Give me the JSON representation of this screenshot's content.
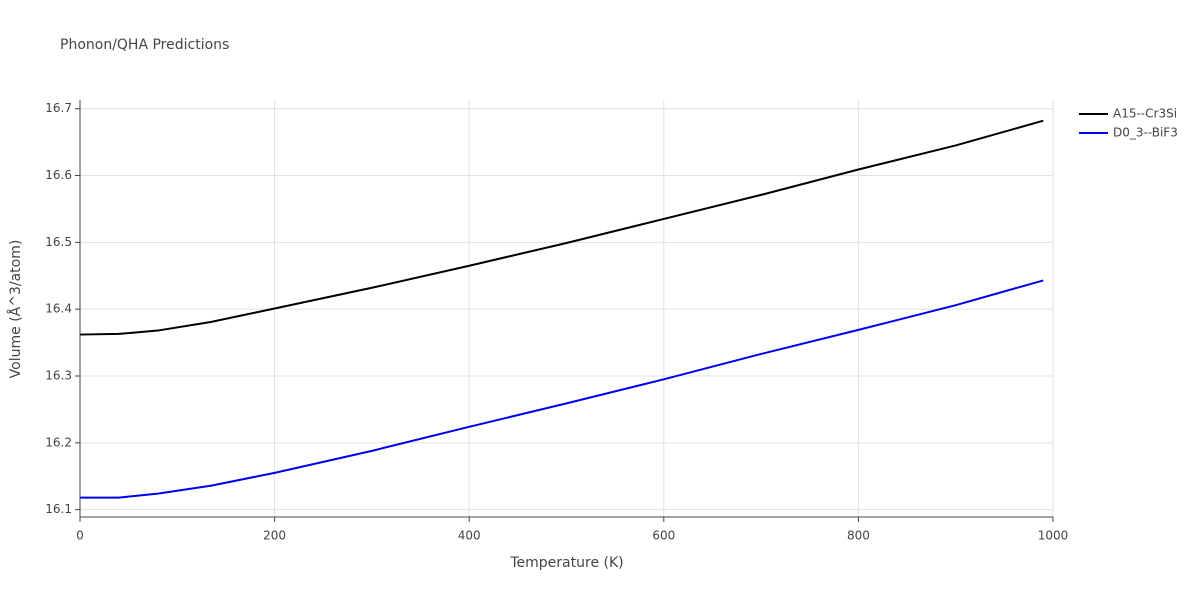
{
  "chart_data": {
    "type": "line",
    "title": "Phonon/QHA Predictions",
    "x_label": "Temperature (K)",
    "y_label": "Volume (Å^3/atom)",
    "x": [
      0,
      40,
      80,
      135,
      200,
      300,
      400,
      500,
      600,
      700,
      800,
      900,
      990
    ],
    "series": [
      {
        "name": "A15--Cr3Si",
        "color": "#000000",
        "values": [
          16.362,
          16.363,
          16.368,
          16.381,
          16.401,
          16.432,
          16.465,
          16.499,
          16.535,
          16.571,
          16.609,
          16.645,
          16.682
        ]
      },
      {
        "name": "D0_3--BiF3",
        "color": "#0000ee",
        "values": [
          16.118,
          16.118,
          16.124,
          16.136,
          16.155,
          16.188,
          16.224,
          16.259,
          16.295,
          16.333,
          16.369,
          16.406,
          16.443
        ]
      }
    ],
    "xlim": [
      0,
      1000
    ],
    "xticks": [
      0,
      200,
      400,
      600,
      800,
      1000
    ],
    "ylim": [
      16.089,
      16.713
    ],
    "yticks": [
      16.1,
      16.2,
      16.3,
      16.4,
      16.5,
      16.6,
      16.7
    ],
    "grid": true,
    "legend": "top-right"
  }
}
